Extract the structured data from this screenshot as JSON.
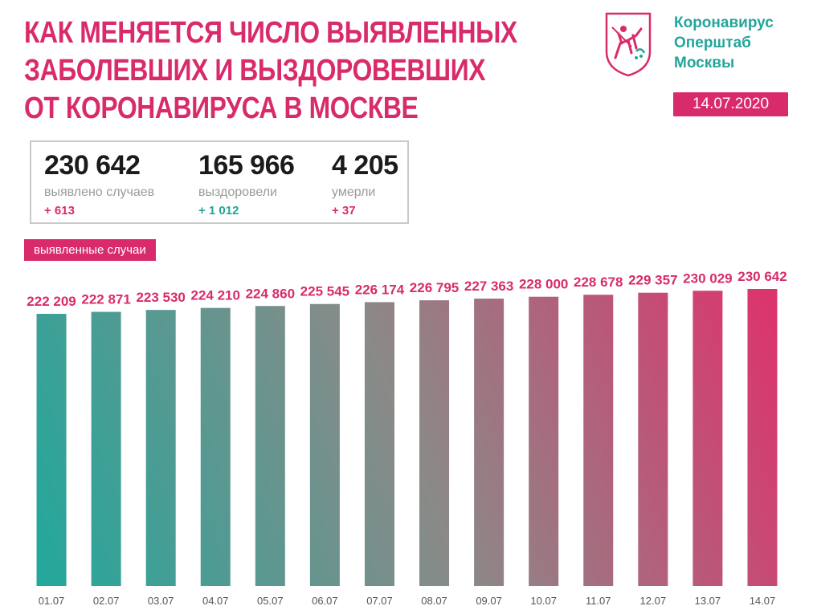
{
  "header": {
    "title_lines": [
      "Как меняется число выявленных",
      "заболевших и выздоровевших",
      "от коронавируса в Москве"
    ],
    "org_lines": [
      "Коронавирус",
      "Оперштаб",
      "Москвы"
    ],
    "date": "14.07.2020"
  },
  "stats": {
    "cases": {
      "value": "230 642",
      "label": "выявлено случаев",
      "delta": "+ 613"
    },
    "recovered": {
      "value": "165 966",
      "label": "выздоровели",
      "delta": "+ 1 012"
    },
    "deaths": {
      "value": "4 205",
      "label": "умерли",
      "delta": "+ 37"
    }
  },
  "section_label": "выявленные случаи",
  "colors": {
    "accent_pink": "#d92b6b",
    "accent_teal": "#24a59a"
  },
  "chart_data": {
    "type": "bar",
    "categories": [
      "01.07",
      "02.07",
      "03.07",
      "04.07",
      "05.07",
      "06.07",
      "07.07",
      "08.07",
      "09.07",
      "10.07",
      "11.07",
      "12.07",
      "13.07",
      "14.07"
    ],
    "values": [
      222209,
      222871,
      223530,
      224210,
      224860,
      225545,
      226174,
      226795,
      227363,
      228000,
      228678,
      229357,
      230029,
      230642
    ],
    "value_labels": [
      "222 209",
      "222 871",
      "223 530",
      "224 210",
      "224 860",
      "225 545",
      "226 174",
      "226 795",
      "227 363",
      "228 000",
      "228 678",
      "229 357",
      "230 029",
      "230 642"
    ],
    "title": "",
    "xlabel": "",
    "ylabel": "",
    "grid": false,
    "legend": "none"
  }
}
